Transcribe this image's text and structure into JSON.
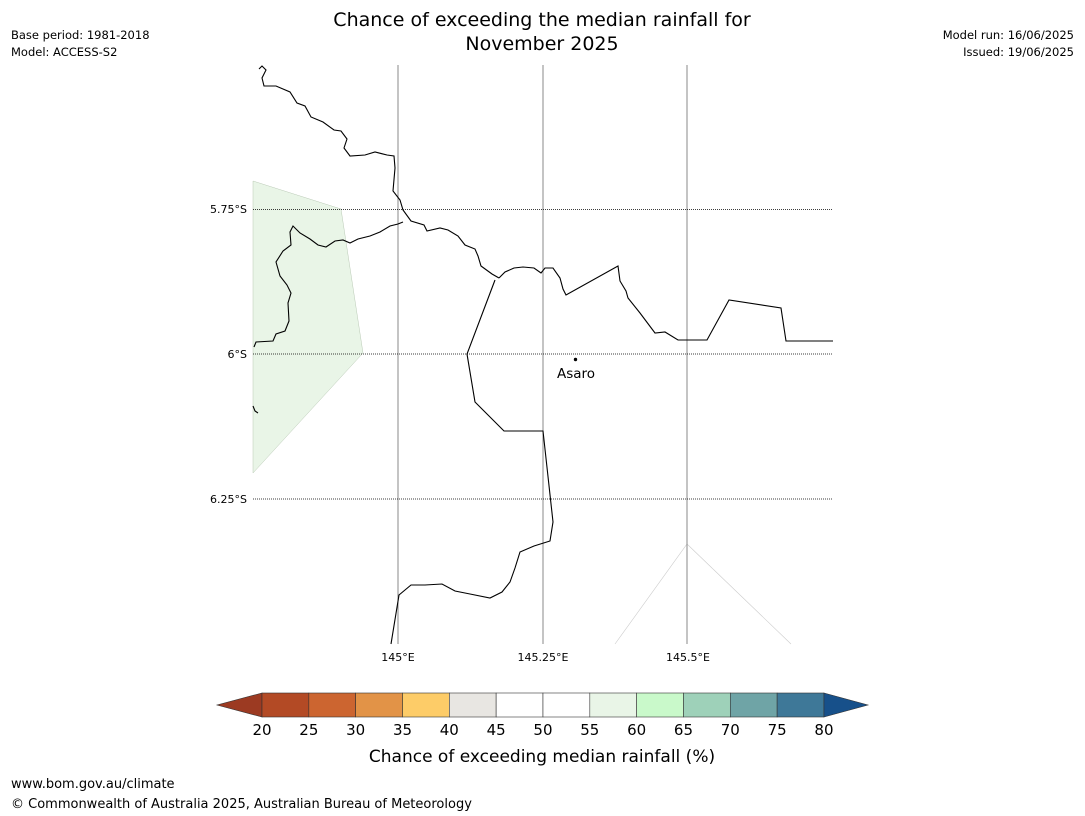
{
  "title_line1": "Chance of exceeding the median rainfall for",
  "title_line2": "November 2025",
  "meta_left": {
    "base_period": "Base period: 1981-2018",
    "model": "Model: ACCESS-S2"
  },
  "meta_right": {
    "model_run": "Model run: 16/06/2025",
    "issued": "Issued: 19/06/2025"
  },
  "map": {
    "lat_labels": [
      "5.75°S",
      "6°S",
      "6.25°S"
    ],
    "lon_labels": [
      "145°E",
      "145.25°E",
      "145.5°E"
    ],
    "place": {
      "name": "Asaro"
    }
  },
  "colorbar": {
    "ticks": [
      "20",
      "25",
      "30",
      "35",
      "40",
      "45",
      "50",
      "55",
      "60",
      "65",
      "70",
      "75",
      "80"
    ],
    "colors": [
      "#9c3a22",
      "#b34a25",
      "#cc6530",
      "#e29347",
      "#fdcc68",
      "#e8e6e2",
      "#ffffff",
      "#ffffff",
      "#e9f5e7",
      "#c9f9ca",
      "#9ed1b9",
      "#6fa4a6",
      "#3e7898",
      "#17508a"
    ],
    "label": "Chance of exceeding median rainfall (%)"
  },
  "footer": {
    "url": "www.bom.gov.au/climate",
    "copyright": "© Commonwealth of Australia 2025, Australian Bureau of Meteorology"
  }
}
